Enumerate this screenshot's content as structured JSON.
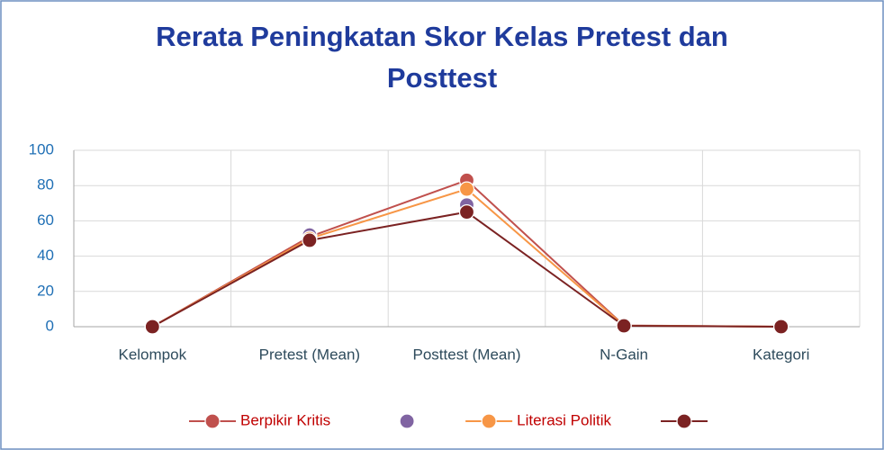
{
  "chart_data": {
    "type": "line",
    "title": "Rerata Peningkatan Skor Kelas Pretest dan Posttest",
    "categories": [
      "Kelompok",
      "Pretest (Mean)",
      "Posttest (Mean)",
      "N-Gain",
      "Kategori"
    ],
    "series": [
      {
        "name": "Berpikir Kritis",
        "color": "#c0504d",
        "show_line": true,
        "values": [
          0,
          51,
          83,
          0.7,
          0
        ]
      },
      {
        "color": "#8064a2",
        "show_line": false,
        "values": [
          0,
          52,
          69,
          0.6,
          0
        ]
      },
      {
        "name": "Literasi Politik",
        "color": "#f79646",
        "show_line": true,
        "values": [
          0,
          50,
          78,
          0.6,
          0
        ]
      },
      {
        "color": "#7b2222",
        "show_line": true,
        "values": [
          0,
          49,
          65,
          0.5,
          0
        ]
      }
    ],
    "ylim": [
      0,
      100
    ],
    "yticks": [
      0,
      20,
      40,
      60,
      80,
      100
    ],
    "grid": true,
    "legend": "bottom"
  }
}
